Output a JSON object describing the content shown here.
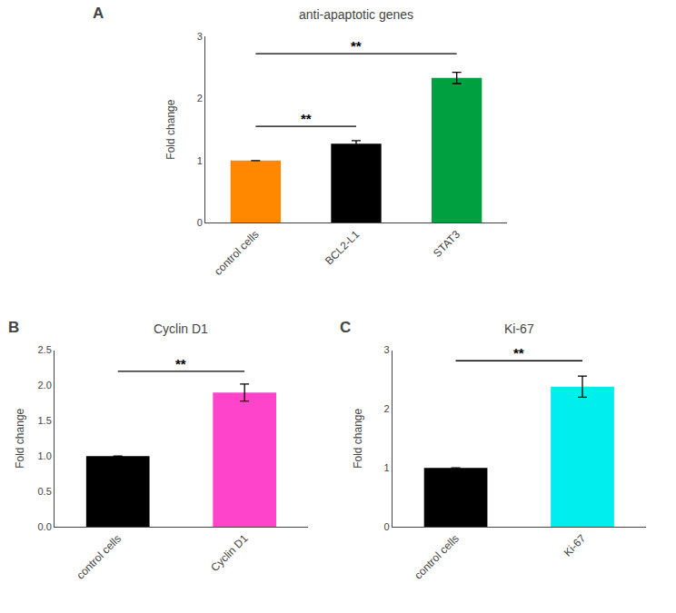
{
  "chart_data": [
    {
      "type": "bar",
      "panel_label": "A",
      "title": "anti-apaptotic genes",
      "categories": [
        "control cells",
        "BCL2-L1",
        "STAT3"
      ],
      "values": [
        1.0,
        1.27,
        2.33
      ],
      "errors": [
        0.0,
        0.05,
        0.09
      ],
      "colors": [
        "#FF8800",
        "#000000",
        "#00A040"
      ],
      "ylabel": "Fold change",
      "ylim": [
        0,
        3
      ],
      "yticks": [
        0,
        1,
        2,
        3
      ],
      "grid": false,
      "annotations": [
        {
          "x1": 0,
          "x2": 1,
          "y": 1.55,
          "text": "**"
        },
        {
          "x1": 0,
          "x2": 2,
          "y": 2.72,
          "text": "**"
        }
      ]
    },
    {
      "type": "bar",
      "panel_label": "B",
      "title": "Cyclin D1",
      "categories": [
        "control cells",
        "Cyclin D1"
      ],
      "values": [
        1.0,
        1.9
      ],
      "errors": [
        0.0,
        0.12
      ],
      "colors": [
        "#000000",
        "#FF44CC"
      ],
      "ylabel": "Fold change",
      "ylim": [
        0,
        2.5
      ],
      "yticks": [
        {
          "value": 0,
          "label": "0.0"
        },
        0.5,
        {
          "value": 1,
          "label": "1.0"
        },
        1.5,
        {
          "value": 2,
          "label": "2.0"
        },
        2.5
      ],
      "grid": false,
      "annotations": [
        {
          "x1": 0,
          "x2": 1,
          "y": 2.2,
          "text": "**"
        }
      ]
    },
    {
      "type": "bar",
      "panel_label": "C",
      "title": "Ki-67",
      "categories": [
        "control cells",
        "Ki-67"
      ],
      "values": [
        1.0,
        2.38
      ],
      "errors": [
        0.0,
        0.18
      ],
      "colors": [
        "#000000",
        "#00EEEE"
      ],
      "ylabel": "Fold change",
      "ylim": [
        0,
        3
      ],
      "yticks": [
        0,
        1,
        2,
        3
      ],
      "grid": false,
      "annotations": [
        {
          "x1": 0,
          "x2": 1,
          "y": 2.82,
          "text": "**"
        }
      ]
    }
  ]
}
